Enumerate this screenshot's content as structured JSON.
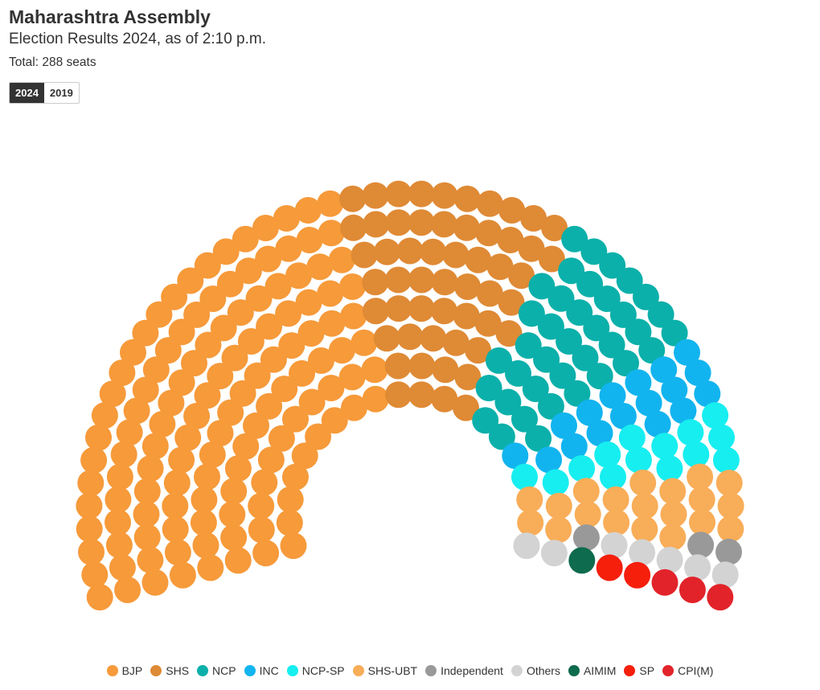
{
  "header": {
    "title": "Maharashtra Assembly",
    "subtitle": "Election Results 2024, as of 2:10 p.m.",
    "total": "Total: 288 seats"
  },
  "toggle": [
    {
      "label": "2024",
      "active": true
    },
    {
      "label": "2019",
      "active": false
    }
  ],
  "chart_data": {
    "type": "parliament",
    "total_seats": 288,
    "series": [
      {
        "name": "BJP",
        "seats": 128,
        "color": "#f69a3a"
      },
      {
        "name": "SHS",
        "seats": 55,
        "color": "#df8a35"
      },
      {
        "name": "NCP",
        "seats": 38,
        "color": "#0bb0aa"
      },
      {
        "name": "INC",
        "seats": 17,
        "color": "#12b4ef"
      },
      {
        "name": "NCP-SP",
        "seats": 14,
        "color": "#17eef0"
      },
      {
        "name": "SHS-UBT",
        "seats": 20,
        "color": "#f8ad58"
      },
      {
        "name": "Independent",
        "seats": 3,
        "color": "#999999"
      },
      {
        "name": "Others",
        "seats": 7,
        "color": "#d3d3d3"
      },
      {
        "name": "AIMIM",
        "seats": 1,
        "color": "#0e6b4d"
      },
      {
        "name": "SP",
        "seats": 2,
        "color": "#f51f0c"
      },
      {
        "name": "CPI(M)",
        "seats": 3,
        "color": "#e2232a"
      }
    ]
  }
}
